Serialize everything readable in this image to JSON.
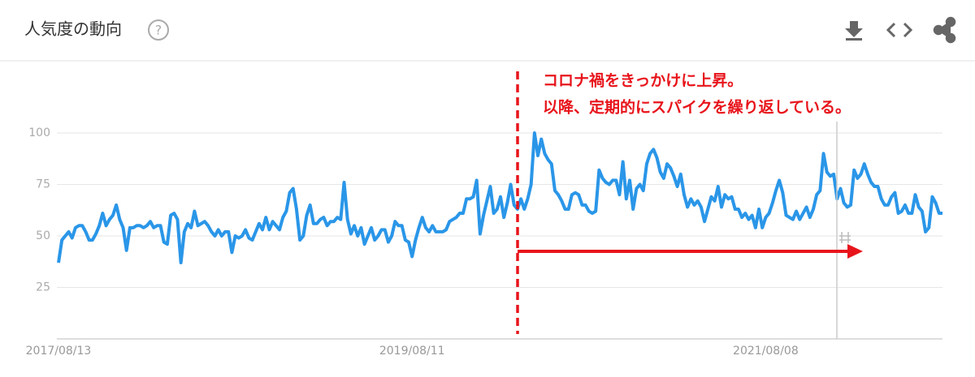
{
  "header": {
    "title": "人気度の動向",
    "help": "?"
  },
  "chart_data": {
    "type": "line",
    "categories": [
      "2017/08/13",
      null,
      null,
      null,
      null,
      null,
      null,
      null,
      null,
      null,
      null,
      null,
      null,
      null,
      null,
      null,
      null,
      null,
      null,
      null,
      null,
      null,
      null,
      null,
      null,
      null,
      null,
      null,
      null,
      null,
      null,
      null,
      null,
      null,
      null,
      null,
      null,
      null,
      null,
      null,
      null,
      null,
      null,
      null,
      null,
      null,
      null,
      null,
      null,
      null,
      null,
      null,
      null,
      null,
      null,
      null,
      null,
      null,
      null,
      null,
      null,
      null,
      null,
      null,
      null,
      null,
      null,
      null,
      null,
      null,
      null,
      null,
      null,
      null,
      null,
      null,
      null,
      null,
      null,
      null,
      null,
      null,
      null,
      null,
      null,
      null,
      null,
      null,
      null,
      null,
      null,
      null,
      null,
      null,
      null,
      null,
      null,
      null,
      null,
      null,
      null,
      null,
      null,
      null,
      "2019/08/11",
      null,
      null,
      null,
      null,
      null,
      null,
      null,
      null,
      null,
      null,
      null,
      null,
      null,
      null,
      null,
      null,
      null,
      null,
      null,
      null,
      null,
      null,
      null,
      null,
      null,
      null,
      null,
      null,
      null,
      null,
      null,
      null,
      null,
      null,
      null,
      null,
      null,
      null,
      null,
      null,
      null,
      null,
      null,
      null,
      null,
      null,
      null,
      null,
      null,
      null,
      null,
      null,
      null,
      null,
      null,
      null,
      null,
      null,
      null,
      null,
      null,
      null,
      null,
      null,
      null,
      null,
      null,
      null,
      null,
      null,
      null,
      null,
      null,
      null,
      null,
      null,
      null,
      null,
      null,
      null,
      null,
      null,
      null,
      null,
      null,
      null,
      null,
      null,
      null,
      null,
      null,
      null,
      null,
      null,
      null,
      null,
      null,
      null,
      null,
      null,
      null,
      null,
      null,
      "2021/08/08",
      null,
      null,
      null,
      null,
      null,
      null,
      null,
      null,
      null,
      null,
      null,
      null,
      null,
      null,
      null,
      null,
      null,
      null,
      null,
      null,
      null,
      null,
      null,
      null,
      null,
      null,
      null,
      null,
      null,
      null,
      null,
      null,
      null,
      null,
      null,
      null,
      null,
      null,
      null,
      null,
      null,
      null,
      null,
      null,
      null,
      null,
      null,
      null,
      null,
      null,
      null,
      null
    ],
    "values": [
      37,
      48,
      50,
      52,
      49,
      54,
      55,
      55,
      52,
      48,
      48,
      51,
      55,
      61,
      55,
      58,
      60,
      65,
      58,
      54,
      43,
      54,
      54,
      55,
      55,
      54,
      55,
      57,
      54,
      55,
      55,
      47,
      46,
      60,
      61,
      58,
      37,
      52,
      56,
      54,
      62,
      55,
      56,
      57,
      55,
      52,
      50,
      53,
      50,
      52,
      52,
      42,
      50,
      49,
      50,
      53,
      49,
      48,
      52,
      56,
      53,
      59,
      53,
      57,
      55,
      53,
      59,
      62,
      71,
      73,
      63,
      48,
      50,
      60,
      65,
      56,
      56,
      58,
      59,
      55,
      57,
      57,
      59,
      58,
      76,
      58,
      51,
      55,
      50,
      54,
      46,
      50,
      54,
      48,
      50,
      53,
      53,
      47,
      50,
      57,
      55,
      55,
      48,
      47,
      40,
      48,
      54,
      59,
      54,
      52,
      55,
      52,
      52,
      52,
      53,
      57,
      58,
      59,
      61,
      61,
      68,
      68,
      69,
      77,
      51,
      60,
      67,
      74,
      61,
      63,
      69,
      59,
      66,
      75,
      65,
      63,
      68,
      63,
      68,
      75,
      100,
      89,
      97,
      90,
      87,
      85,
      72,
      70,
      67,
      63,
      63,
      70,
      71,
      70,
      65,
      65,
      62,
      61,
      62,
      82,
      78,
      76,
      75,
      77,
      77,
      70,
      86,
      68,
      77,
      63,
      73,
      75,
      72,
      85,
      90,
      92,
      88,
      81,
      78,
      85,
      83,
      79,
      74,
      80,
      70,
      64,
      68,
      65,
      67,
      64,
      57,
      63,
      69,
      67,
      74,
      64,
      70,
      68,
      69,
      63,
      63,
      59,
      61,
      58,
      60,
      54,
      63,
      54,
      59,
      61,
      66,
      72,
      77,
      71,
      60,
      59,
      58,
      62,
      58,
      61,
      64,
      59,
      63,
      70,
      72,
      90,
      81,
      79,
      80,
      68,
      73,
      66,
      64,
      65,
      82,
      78,
      80,
      85,
      80,
      76,
      74,
      74,
      68,
      65,
      65,
      69,
      71,
      61,
      62,
      65,
      61,
      61,
      70,
      64,
      62,
      52,
      54,
      69,
      66,
      61,
      61
    ],
    "color": "#2a96e8",
    "ylim": [
      0,
      100
    ],
    "yticks": [
      25,
      50,
      75,
      100
    ],
    "grid": true,
    "annotations": [
      "コロナ禍をきっかけに上昇。",
      "以降、定期的にスパイクを繰り返している。"
    ]
  }
}
